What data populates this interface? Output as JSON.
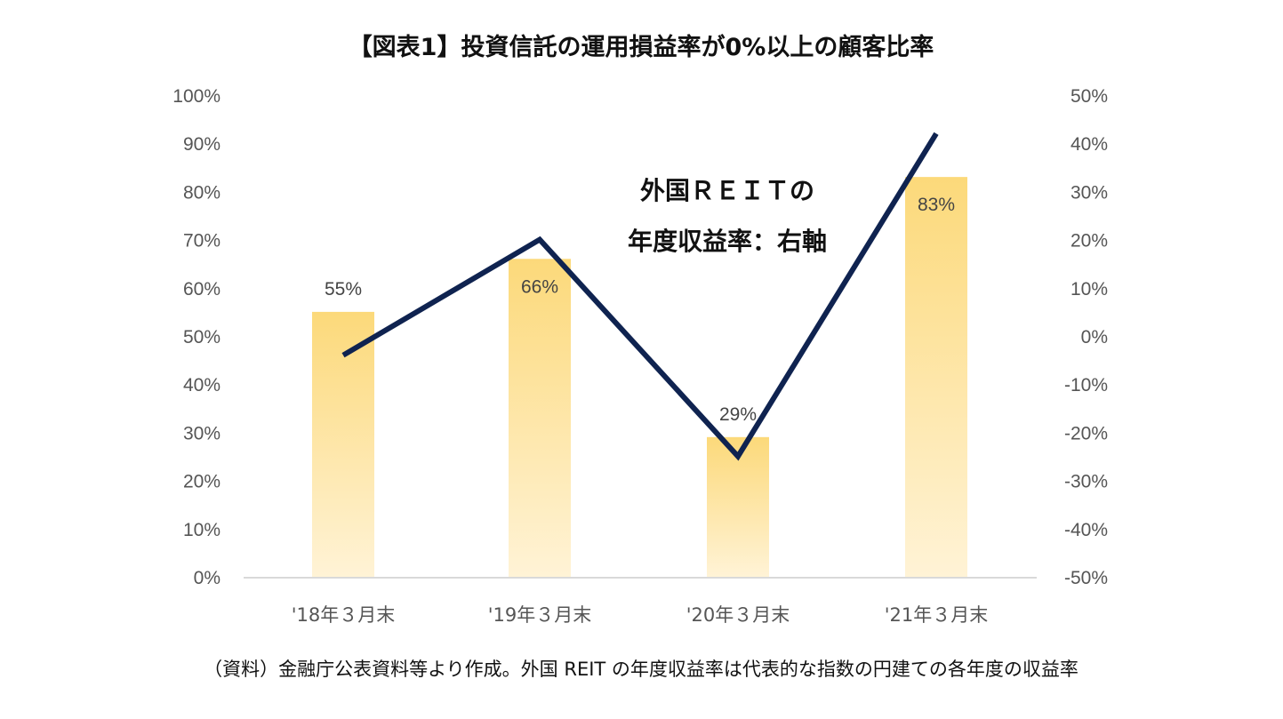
{
  "chart_data": {
    "type": "bar",
    "title": "【図表1】投資信託の運用損益率が0%以上の顧客比率",
    "categories": [
      "'18年３月末",
      "'19年３月末",
      "'20年３月末",
      "'21年３月末"
    ],
    "series": [
      {
        "axis": "left",
        "kind": "bar",
        "values": [
          55,
          66,
          29,
          83
        ],
        "data_labels": [
          "55%",
          "66%",
          "29%",
          "83%"
        ]
      },
      {
        "axis": "right",
        "kind": "line",
        "values": [
          -4,
          20,
          -25,
          42
        ]
      }
    ],
    "ylim_left": [
      0,
      100
    ],
    "yticks_left": [
      "100%",
      "90%",
      "80%",
      "70%",
      "60%",
      "50%",
      "40%",
      "30%",
      "20%",
      "10%",
      "0%"
    ],
    "ylim_right": [
      -50,
      50
    ],
    "yticks_right": [
      "50%",
      "40%",
      "30%",
      "20%",
      "10%",
      "0%",
      "-10%",
      "-20%",
      "-30%",
      "-40%",
      "-50%"
    ],
    "annotation": [
      "外国ＲＥＩＴの",
      "年度収益率：右軸"
    ],
    "source_note": "（資料）金融庁公表資料等より作成。外国 REIT の年度収益率は代表的な指数の円建ての各年度の収益率",
    "colors": {
      "bar_top": "#fcd97a",
      "bar_bottom": "#fff3d6",
      "line": "#0f2350",
      "baseline": "#d9d9d9"
    },
    "grid": false,
    "legend": "none"
  }
}
